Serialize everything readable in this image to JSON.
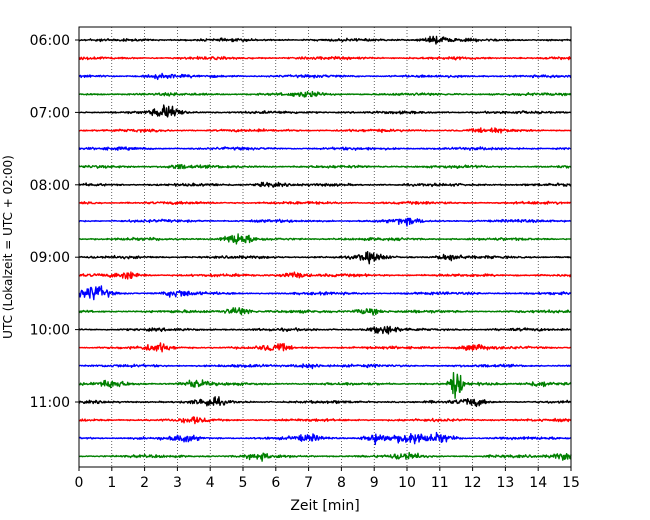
{
  "chart_data": {
    "type": "line",
    "title": "",
    "xlabel": "Zeit  [min]",
    "ylabel": "UTC (Lokalzeit = UTC + 02:00)",
    "xlim": [
      0,
      15
    ],
    "xticks": [
      "0",
      "1",
      "2",
      "3",
      "4",
      "5",
      "6",
      "7",
      "8",
      "9",
      "10",
      "11",
      "12",
      "13",
      "14",
      "15"
    ],
    "grid": "vertical dotted at each minute",
    "hour_labels": [
      "06:00",
      "07:00",
      "08:00",
      "09:00",
      "10:00",
      "11:00"
    ],
    "trace_colors": [
      "#000000",
      "#ff0000",
      "#0000ff",
      "#008000"
    ],
    "traces": [
      {
        "start": "06:00",
        "color": "#000000",
        "events": [
          {
            "t": 10.9,
            "amp": 0.45
          }
        ]
      },
      {
        "start": "06:15",
        "color": "#ff0000",
        "events": []
      },
      {
        "start": "06:30",
        "color": "#0000ff",
        "events": [
          {
            "t": 2.5,
            "amp": 0.3
          }
        ]
      },
      {
        "start": "06:45",
        "color": "#008000",
        "events": [
          {
            "t": 7.0,
            "amp": 0.3
          }
        ]
      },
      {
        "start": "07:00",
        "color": "#000000",
        "events": [
          {
            "t": 2.7,
            "amp": 0.85
          }
        ]
      },
      {
        "start": "07:15",
        "color": "#ff0000",
        "events": [
          {
            "t": 12.5,
            "amp": 0.25
          }
        ]
      },
      {
        "start": "07:30",
        "color": "#0000ff",
        "events": []
      },
      {
        "start": "07:45",
        "color": "#008000",
        "events": [
          {
            "t": 3.0,
            "amp": 0.3
          }
        ]
      },
      {
        "start": "08:00",
        "color": "#000000",
        "events": [
          {
            "t": 5.8,
            "amp": 0.3
          }
        ]
      },
      {
        "start": "08:15",
        "color": "#ff0000",
        "events": []
      },
      {
        "start": "08:30",
        "color": "#0000ff",
        "events": [
          {
            "t": 10.0,
            "amp": 0.35
          }
        ]
      },
      {
        "start": "08:45",
        "color": "#008000",
        "events": [
          {
            "t": 4.85,
            "amp": 0.75
          }
        ]
      },
      {
        "start": "09:00",
        "color": "#000000",
        "events": [
          {
            "t": 8.9,
            "amp": 0.55
          },
          {
            "t": 11.3,
            "amp": 0.4
          }
        ]
      },
      {
        "start": "09:15",
        "color": "#ff0000",
        "events": [
          {
            "t": 1.5,
            "amp": 0.45
          },
          {
            "t": 6.5,
            "amp": 0.4
          }
        ]
      },
      {
        "start": "09:30",
        "color": "#0000ff",
        "events": [
          {
            "t": 0.5,
            "amp": 0.95
          },
          {
            "t": 3.0,
            "amp": 0.45
          }
        ]
      },
      {
        "start": "09:45",
        "color": "#008000",
        "events": [
          {
            "t": 4.85,
            "amp": 0.55
          },
          {
            "t": 8.8,
            "amp": 0.4
          }
        ]
      },
      {
        "start": "10:00",
        "color": "#000000",
        "events": [
          {
            "t": 9.3,
            "amp": 0.5
          }
        ]
      },
      {
        "start": "10:15",
        "color": "#ff0000",
        "events": [
          {
            "t": 2.4,
            "amp": 0.5
          },
          {
            "t": 6.0,
            "amp": 0.45
          },
          {
            "t": 12.0,
            "amp": 0.45
          }
        ]
      },
      {
        "start": "10:30",
        "color": "#0000ff",
        "events": [
          {
            "t": 7.0,
            "amp": 0.3
          }
        ]
      },
      {
        "start": "10:45",
        "color": "#008000",
        "events": [
          {
            "t": 1.0,
            "amp": 0.45
          },
          {
            "t": 3.5,
            "amp": 0.5
          },
          {
            "t": 11.5,
            "amp": 2.1
          },
          {
            "t": 14.0,
            "amp": 0.4
          }
        ]
      },
      {
        "start": "11:00",
        "color": "#000000",
        "events": [
          {
            "t": 4.0,
            "amp": 0.55
          },
          {
            "t": 12.0,
            "amp": 0.5
          }
        ]
      },
      {
        "start": "11:15",
        "color": "#ff0000",
        "events": [
          {
            "t": 3.5,
            "amp": 0.3
          }
        ]
      },
      {
        "start": "11:30",
        "color": "#0000ff",
        "events": [
          {
            "t": 3.2,
            "amp": 0.45
          },
          {
            "t": 7.0,
            "amp": 0.4
          },
          {
            "t": 9.1,
            "amp": 0.6
          },
          {
            "t": 10.1,
            "amp": 0.85
          },
          {
            "t": 11.0,
            "amp": 0.55
          }
        ]
      },
      {
        "start": "11:45",
        "color": "#008000",
        "events": [
          {
            "t": 5.5,
            "amp": 0.35
          },
          {
            "t": 10.0,
            "amp": 0.45
          },
          {
            "t": 14.8,
            "amp": 0.45
          }
        ]
      }
    ]
  }
}
